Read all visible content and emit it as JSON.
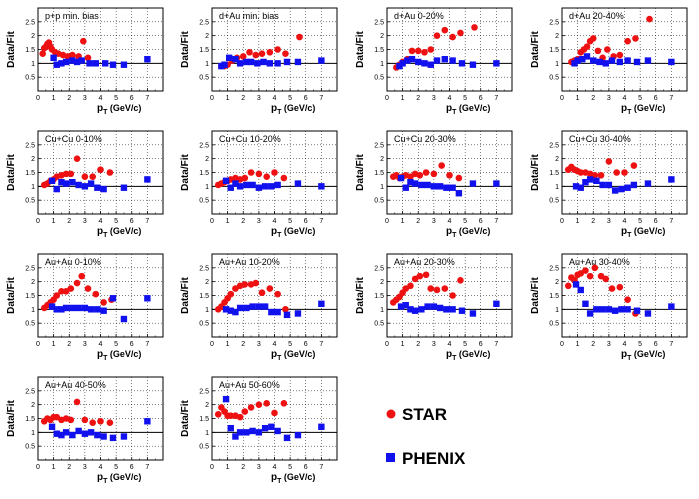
{
  "figure": {
    "x_axis_label": "p",
    "x_axis_label_sub": "T",
    "x_axis_label_unit": " (GeV/c)",
    "y_axis_label": "Data/Fit"
  },
  "legend": [
    {
      "name": "STAR",
      "color": "#ee1111",
      "marker": "circle"
    },
    {
      "name": "PHENIX",
      "color": "#1111ee",
      "marker": "square"
    }
  ],
  "axes": {
    "xlim": [
      0,
      8
    ],
    "ylim": [
      0,
      3
    ],
    "x_ticks": [
      "0",
      "1",
      "2",
      "3",
      "4",
      "5",
      "6",
      "7"
    ],
    "y_ticks": [
      "0.5",
      "1",
      "1.5",
      "2",
      "2.5"
    ],
    "grid": "dotted",
    "reference_line": 1
  },
  "chart_data": [
    {
      "type": "scatter",
      "title": "p+p min. bias",
      "series": [
        {
          "name": "STAR",
          "x": [
            0.3,
            0.4,
            0.5,
            0.6,
            0.7,
            0.8,
            0.9,
            1.1,
            1.3,
            1.6,
            1.9,
            2.2,
            2.6,
            2.9,
            3.2
          ],
          "y": [
            1.35,
            1.55,
            1.6,
            1.7,
            1.75,
            1.6,
            1.5,
            1.4,
            1.35,
            1.3,
            1.25,
            1.3,
            1.25,
            1.8,
            1.2
          ]
        },
        {
          "name": "PHENIX",
          "x": [
            1.0,
            1.2,
            1.5,
            1.8,
            2.2,
            2.5,
            2.8,
            3.3,
            3.7,
            4.3,
            4.8,
            5.5,
            7.0
          ],
          "y": [
            1.2,
            0.95,
            1.0,
            1.05,
            1.1,
            1.05,
            1.1,
            1.0,
            1.0,
            1.0,
            0.95,
            0.95,
            1.15
          ]
        }
      ]
    },
    {
      "type": "scatter",
      "title": "d+Au min. bias",
      "series": [
        {
          "name": "STAR",
          "x": [
            0.6,
            0.8,
            1.0,
            1.3,
            1.6,
            2.0,
            2.4,
            2.8,
            3.2,
            3.7,
            4.2,
            4.7,
            5.6
          ],
          "y": [
            0.9,
            0.9,
            0.95,
            1.1,
            1.2,
            1.25,
            1.4,
            1.3,
            1.35,
            1.4,
            1.5,
            1.35,
            1.95
          ]
        },
        {
          "name": "PHENIX",
          "x": [
            0.6,
            0.8,
            1.1,
            1.5,
            1.8,
            2.2,
            2.5,
            2.9,
            3.3,
            3.7,
            4.2,
            4.8,
            5.5,
            7.0
          ],
          "y": [
            0.9,
            0.95,
            1.2,
            1.15,
            1.0,
            1.05,
            1.05,
            1.0,
            1.05,
            1.0,
            1.0,
            1.05,
            1.05,
            1.1
          ]
        }
      ]
    },
    {
      "type": "scatter",
      "title": "d+Au 0-20%",
      "series": [
        {
          "name": "STAR",
          "x": [
            0.6,
            0.8,
            1.0,
            1.3,
            1.6,
            2.0,
            2.4,
            2.8,
            3.2,
            3.7,
            4.2,
            4.7,
            5.6
          ],
          "y": [
            0.85,
            0.95,
            1.05,
            1.15,
            1.45,
            1.45,
            1.4,
            1.5,
            2.0,
            2.2,
            1.95,
            2.1,
            2.3
          ]
        },
        {
          "name": "PHENIX",
          "x": [
            0.8,
            1.0,
            1.3,
            1.6,
            2.0,
            2.4,
            2.8,
            3.2,
            3.7,
            4.2,
            4.8,
            5.5,
            7.0
          ],
          "y": [
            0.9,
            1.0,
            1.1,
            1.15,
            1.05,
            1.0,
            0.95,
            1.1,
            1.15,
            1.1,
            1.0,
            0.95,
            1.0
          ]
        }
      ]
    },
    {
      "type": "scatter",
      "title": "d+Au 20-40%",
      "series": [
        {
          "name": "STAR",
          "x": [
            0.6,
            0.8,
            1.0,
            1.2,
            1.4,
            1.6,
            1.8,
            2.0,
            2.3,
            2.6,
            2.9,
            3.3,
            3.7,
            4.2,
            4.7,
            5.6
          ],
          "y": [
            1.05,
            1.1,
            1.15,
            1.4,
            1.5,
            1.6,
            1.8,
            1.9,
            1.45,
            1.2,
            1.5,
            1.25,
            1.3,
            1.8,
            1.9,
            2.6
          ]
        },
        {
          "name": "PHENIX",
          "x": [
            0.8,
            1.0,
            1.3,
            1.6,
            2.0,
            2.4,
            2.8,
            3.2,
            3.7,
            4.2,
            4.8,
            5.5,
            7.0
          ],
          "y": [
            1.0,
            1.1,
            1.15,
            1.25,
            1.1,
            1.05,
            1.0,
            1.1,
            1.05,
            1.1,
            1.05,
            1.1,
            1.05
          ]
        }
      ]
    },
    {
      "type": "scatter",
      "title": "Cu+Cu 0-10%",
      "series": [
        {
          "name": "STAR",
          "x": [
            0.4,
            0.6,
            0.8,
            1.0,
            1.2,
            1.5,
            1.8,
            2.1,
            2.5,
            3.0,
            3.5,
            4.0,
            4.6
          ],
          "y": [
            1.05,
            1.1,
            1.2,
            1.25,
            1.35,
            1.4,
            1.45,
            1.45,
            2.0,
            1.35,
            1.35,
            1.6,
            1.5
          ]
        },
        {
          "name": "PHENIX",
          "x": [
            0.9,
            1.2,
            1.5,
            1.8,
            2.2,
            2.6,
            3.0,
            3.4,
            3.8,
            4.2,
            5.5,
            7.0
          ],
          "y": [
            1.2,
            0.9,
            1.15,
            1.1,
            1.15,
            1.05,
            1.0,
            1.1,
            0.95,
            0.9,
            0.95,
            1.25
          ]
        }
      ]
    },
    {
      "type": "scatter",
      "title": "Cu+Cu 10-20%",
      "series": [
        {
          "name": "STAR",
          "x": [
            0.4,
            0.6,
            0.8,
            1.0,
            1.2,
            1.5,
            1.8,
            2.1,
            2.5,
            3.0,
            3.5,
            4.0,
            4.6
          ],
          "y": [
            1.05,
            1.1,
            1.15,
            1.2,
            1.25,
            1.3,
            1.25,
            1.3,
            1.5,
            1.45,
            1.35,
            1.5,
            1.3
          ]
        },
        {
          "name": "PHENIX",
          "x": [
            0.9,
            1.2,
            1.5,
            1.8,
            2.2,
            2.6,
            3.0,
            3.4,
            3.8,
            4.2,
            5.5,
            7.0
          ],
          "y": [
            1.2,
            0.95,
            1.1,
            1.0,
            1.05,
            1.05,
            0.95,
            1.0,
            1.0,
            1.05,
            1.1,
            1.0
          ]
        }
      ]
    },
    {
      "type": "scatter",
      "title": "Cu+Cu 20-30%",
      "series": [
        {
          "name": "STAR",
          "x": [
            0.4,
            0.6,
            0.8,
            1.0,
            1.2,
            1.5,
            1.8,
            2.1,
            2.5,
            3.0,
            3.5,
            4.0,
            4.6
          ],
          "y": [
            1.35,
            1.4,
            1.3,
            1.35,
            1.4,
            1.35,
            1.45,
            1.4,
            1.5,
            1.45,
            1.75,
            1.4,
            1.3
          ]
        },
        {
          "name": "PHENIX",
          "x": [
            0.9,
            1.2,
            1.5,
            1.8,
            2.2,
            2.6,
            3.0,
            3.4,
            3.8,
            4.2,
            4.6,
            5.5,
            7.0
          ],
          "y": [
            1.3,
            0.95,
            1.15,
            1.1,
            1.05,
            1.05,
            1.0,
            1.0,
            0.95,
            0.95,
            0.75,
            1.1,
            1.1
          ]
        }
      ]
    },
    {
      "type": "scatter",
      "title": "Cu+Cu 30-40%",
      "series": [
        {
          "name": "STAR",
          "x": [
            0.4,
            0.6,
            0.8,
            1.0,
            1.2,
            1.5,
            1.8,
            2.1,
            2.5,
            3.0,
            3.5,
            4.0,
            4.6
          ],
          "y": [
            1.6,
            1.7,
            1.6,
            1.55,
            1.5,
            1.5,
            1.45,
            1.4,
            1.4,
            1.9,
            1.5,
            1.5,
            1.75
          ]
        },
        {
          "name": "PHENIX",
          "x": [
            0.9,
            1.2,
            1.5,
            1.8,
            2.2,
            2.6,
            3.0,
            3.4,
            3.8,
            4.2,
            4.6,
            5.5,
            7.0
          ],
          "y": [
            1.0,
            0.95,
            1.15,
            1.25,
            1.2,
            1.05,
            1.05,
            0.85,
            0.9,
            0.95,
            1.05,
            1.1,
            1.25
          ]
        }
      ]
    },
    {
      "type": "scatter",
      "title": "Au+Au 0-10%",
      "series": [
        {
          "name": "STAR",
          "x": [
            0.4,
            0.6,
            0.8,
            1.0,
            1.2,
            1.5,
            1.8,
            2.1,
            2.5,
            2.8,
            3.2,
            3.7,
            4.2,
            4.7
          ],
          "y": [
            1.05,
            1.15,
            1.25,
            1.35,
            1.5,
            1.65,
            1.65,
            1.75,
            1.95,
            2.2,
            1.75,
            1.55,
            1.25,
            1.35
          ]
        },
        {
          "name": "PHENIX",
          "x": [
            0.9,
            1.2,
            1.5,
            1.8,
            2.2,
            2.6,
            3.0,
            3.4,
            3.8,
            4.2,
            4.8,
            5.5,
            7.0
          ],
          "y": [
            1.1,
            1.0,
            1.0,
            1.05,
            1.05,
            1.05,
            1.05,
            1.0,
            1.0,
            0.95,
            1.4,
            0.65,
            1.4
          ]
        }
      ]
    },
    {
      "type": "scatter",
      "title": "Au+Au 10-20%",
      "series": [
        {
          "name": "STAR",
          "x": [
            0.4,
            0.6,
            0.8,
            1.0,
            1.2,
            1.5,
            1.8,
            2.1,
            2.5,
            2.8,
            3.2,
            3.7,
            4.2,
            4.7
          ],
          "y": [
            1.0,
            1.1,
            1.25,
            1.4,
            1.55,
            1.75,
            1.85,
            1.9,
            1.9,
            1.95,
            1.6,
            1.75,
            1.55,
            1.0
          ]
        },
        {
          "name": "PHENIX",
          "x": [
            0.9,
            1.2,
            1.5,
            1.8,
            2.2,
            2.6,
            3.0,
            3.4,
            3.8,
            4.2,
            4.8,
            5.5,
            7.0
          ],
          "y": [
            1.0,
            0.95,
            0.9,
            1.05,
            1.05,
            1.1,
            1.1,
            1.1,
            0.9,
            0.9,
            0.8,
            0.85,
            1.2
          ]
        }
      ]
    },
    {
      "type": "scatter",
      "title": "Au+Au 20-30%",
      "series": [
        {
          "name": "STAR",
          "x": [
            0.4,
            0.6,
            0.8,
            1.0,
            1.2,
            1.5,
            1.8,
            2.1,
            2.5,
            2.8,
            3.2,
            3.7,
            4.2,
            4.7
          ],
          "y": [
            1.25,
            1.35,
            1.45,
            1.6,
            1.75,
            1.85,
            2.1,
            2.2,
            2.25,
            1.75,
            1.7,
            1.75,
            1.5,
            2.05
          ]
        },
        {
          "name": "PHENIX",
          "x": [
            0.9,
            1.2,
            1.5,
            1.8,
            2.2,
            2.6,
            3.0,
            3.4,
            3.8,
            4.2,
            4.8,
            5.5,
            7.0
          ],
          "y": [
            1.1,
            1.15,
            1.0,
            0.95,
            1.0,
            1.1,
            1.1,
            1.05,
            1.0,
            1.0,
            0.95,
            0.85,
            1.2
          ]
        }
      ]
    },
    {
      "type": "scatter",
      "title": "Au+Au 30-40%",
      "series": [
        {
          "name": "STAR",
          "x": [
            0.4,
            0.6,
            0.8,
            1.0,
            1.2,
            1.5,
            1.8,
            2.1,
            2.5,
            2.8,
            3.2,
            3.7,
            4.2,
            4.7
          ],
          "y": [
            1.85,
            2.15,
            2.05,
            2.25,
            2.3,
            2.4,
            2.2,
            2.5,
            2.2,
            2.1,
            1.75,
            1.8,
            1.35,
            0.85
          ]
        },
        {
          "name": "PHENIX",
          "x": [
            0.9,
            1.2,
            1.5,
            1.8,
            2.2,
            2.6,
            3.0,
            3.4,
            3.8,
            4.2,
            4.8,
            5.5,
            7.0
          ],
          "y": [
            1.9,
            1.7,
            1.2,
            0.85,
            1.0,
            1.0,
            1.0,
            0.95,
            1.0,
            1.0,
            0.95,
            0.85,
            1.1
          ]
        }
      ]
    },
    {
      "type": "scatter",
      "title": "Au+Au 40-50%",
      "series": [
        {
          "name": "STAR",
          "x": [
            0.4,
            0.6,
            0.8,
            1.0,
            1.2,
            1.5,
            1.8,
            2.1,
            2.5,
            3.0,
            3.5,
            4.0,
            4.6
          ],
          "y": [
            1.4,
            1.5,
            1.45,
            1.55,
            1.55,
            1.45,
            1.5,
            1.45,
            2.1,
            1.45,
            1.35,
            1.4,
            1.35
          ]
        },
        {
          "name": "PHENIX",
          "x": [
            0.9,
            1.2,
            1.5,
            1.8,
            2.2,
            2.6,
            3.0,
            3.4,
            3.8,
            4.2,
            4.8,
            5.5,
            7.0
          ],
          "y": [
            1.2,
            0.95,
            0.9,
            1.0,
            0.9,
            1.05,
            0.95,
            1.0,
            0.9,
            0.85,
            0.8,
            0.85,
            1.4
          ]
        }
      ]
    },
    {
      "type": "scatter",
      "title": "Au+Au 50-60%",
      "series": [
        {
          "name": "STAR",
          "x": [
            0.4,
            0.6,
            0.8,
            1.0,
            1.2,
            1.5,
            1.8,
            2.1,
            2.5,
            3.0,
            3.5,
            4.0,
            4.6
          ],
          "y": [
            1.65,
            1.9,
            1.75,
            1.6,
            1.6,
            1.6,
            1.55,
            1.75,
            1.9,
            2.0,
            2.05,
            1.7,
            2.05
          ]
        },
        {
          "name": "PHENIX",
          "x": [
            0.9,
            1.2,
            1.5,
            1.8,
            2.2,
            2.6,
            3.0,
            3.4,
            3.8,
            4.2,
            4.8,
            5.5,
            7.0
          ],
          "y": [
            2.2,
            1.15,
            0.85,
            1.0,
            1.0,
            1.05,
            1.0,
            1.15,
            1.2,
            1.05,
            0.8,
            0.9,
            1.2
          ]
        }
      ]
    }
  ]
}
